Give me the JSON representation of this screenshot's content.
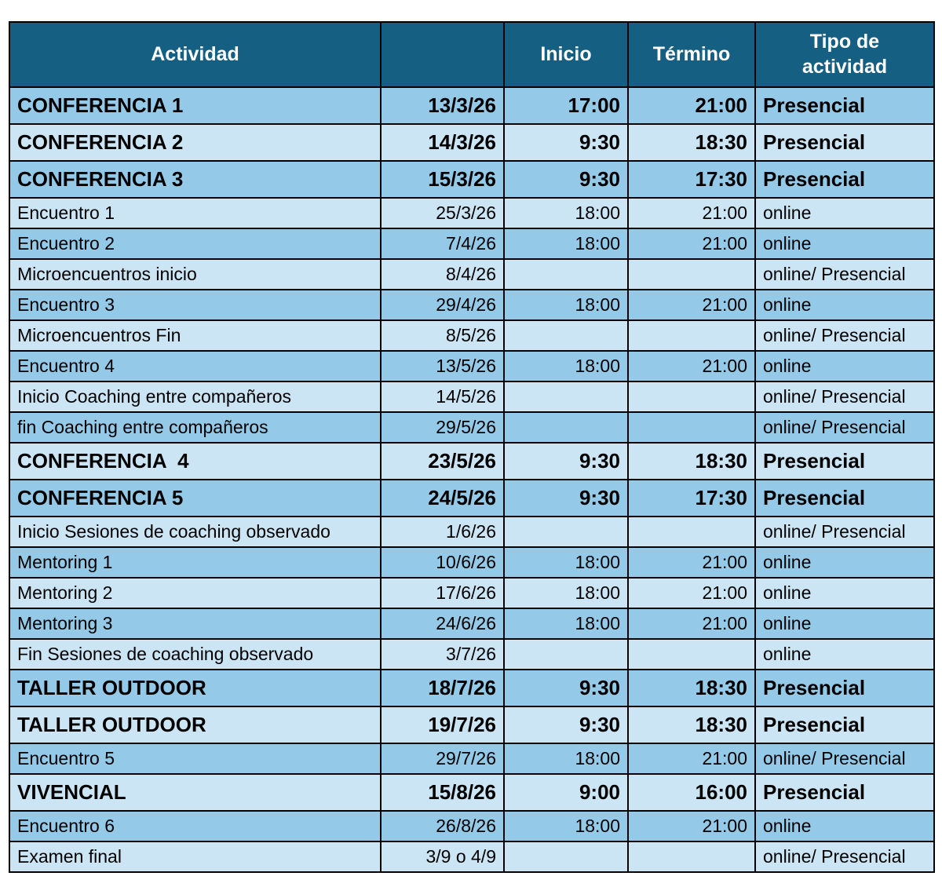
{
  "colors": {
    "header_bg": "#156082",
    "header_text": "#ffffff",
    "row_a": "#94cae8",
    "row_b": "#cbe5f4",
    "border": "#000000",
    "text": "#000000"
  },
  "table": {
    "headers": {
      "actividad": "Actividad",
      "fecha": "",
      "inicio": "Inicio",
      "termino": "Término",
      "tipo": "Tipo de actividad"
    },
    "rows": [
      {
        "actividad": "CONFERENCIA 1",
        "fecha": "13/3/26",
        "inicio": "17:00",
        "termino": "21:00",
        "tipo": "Presencial",
        "emphasis": true
      },
      {
        "actividad": "CONFERENCIA 2",
        "fecha": "14/3/26",
        "inicio": "9:30",
        "termino": "18:30",
        "tipo": "Presencial",
        "emphasis": true
      },
      {
        "actividad": "CONFERENCIA 3",
        "fecha": "15/3/26",
        "inicio": "9:30",
        "termino": "17:30",
        "tipo": "Presencial",
        "emphasis": true
      },
      {
        "actividad": "Encuentro 1",
        "fecha": "25/3/26",
        "inicio": "18:00",
        "termino": "21:00",
        "tipo": "online",
        "emphasis": false
      },
      {
        "actividad": "Encuentro 2",
        "fecha": "7/4/26",
        "inicio": "18:00",
        "termino": "21:00",
        "tipo": "online",
        "emphasis": false
      },
      {
        "actividad": "Microencuentros inicio",
        "fecha": "8/4/26",
        "inicio": "",
        "termino": "",
        "tipo": "online/ Presencial",
        "emphasis": false
      },
      {
        "actividad": "Encuentro 3",
        "fecha": "29/4/26",
        "inicio": "18:00",
        "termino": "21:00",
        "tipo": "online",
        "emphasis": false
      },
      {
        "actividad": "Microencuentros Fin",
        "fecha": "8/5/26",
        "inicio": "",
        "termino": "",
        "tipo": "online/ Presencial",
        "emphasis": false
      },
      {
        "actividad": "Encuentro 4",
        "fecha": "13/5/26",
        "inicio": "18:00",
        "termino": "21:00",
        "tipo": "online",
        "emphasis": false
      },
      {
        "actividad": "Inicio Coaching entre compañeros",
        "fecha": "14/5/26",
        "inicio": "",
        "termino": "",
        "tipo": "online/ Presencial",
        "emphasis": false
      },
      {
        "actividad": "fin Coaching entre compañeros",
        "fecha": "29/5/26",
        "inicio": "",
        "termino": "",
        "tipo": "online/ Presencial",
        "emphasis": false
      },
      {
        "actividad": "CONFERENCIA  4",
        "fecha": "23/5/26",
        "inicio": "9:30",
        "termino": "18:30",
        "tipo": "Presencial",
        "emphasis": true
      },
      {
        "actividad": "CONFERENCIA 5",
        "fecha": "24/5/26",
        "inicio": "9:30",
        "termino": "17:30",
        "tipo": "Presencial",
        "emphasis": true
      },
      {
        "actividad": "Inicio Sesiones de coaching observado",
        "fecha": "1/6/26",
        "inicio": "",
        "termino": "",
        "tipo": "online/ Presencial",
        "emphasis": false
      },
      {
        "actividad": "Mentoring 1",
        "fecha": "10/6/26",
        "inicio": "18:00",
        "termino": "21:00",
        "tipo": "online",
        "emphasis": false
      },
      {
        "actividad": "Mentoring 2",
        "fecha": "17/6/26",
        "inicio": "18:00",
        "termino": "21:00",
        "tipo": "online",
        "emphasis": false
      },
      {
        "actividad": "Mentoring 3",
        "fecha": "24/6/26",
        "inicio": "18:00",
        "termino": "21:00",
        "tipo": "online",
        "emphasis": false
      },
      {
        "actividad": "Fin Sesiones de coaching observado",
        "fecha": "3/7/26",
        "inicio": "",
        "termino": "",
        "tipo": "online",
        "emphasis": false
      },
      {
        "actividad": "TALLER OUTDOOR",
        "fecha": "18/7/26",
        "inicio": "9:30",
        "termino": "18:30",
        "tipo": "Presencial",
        "emphasis": true
      },
      {
        "actividad": "TALLER OUTDOOR",
        "fecha": "19/7/26",
        "inicio": "9:30",
        "termino": "18:30",
        "tipo": "Presencial",
        "emphasis": true
      },
      {
        "actividad": "Encuentro 5",
        "fecha": "29/7/26",
        "inicio": "18:00",
        "termino": "21:00",
        "tipo": "online/ Presencial",
        "emphasis": false
      },
      {
        "actividad": "VIVENCIAL",
        "fecha": "15/8/26",
        "inicio": "9:00",
        "termino": "16:00",
        "tipo": "Presencial",
        "emphasis": true
      },
      {
        "actividad": "Encuentro 6",
        "fecha": "26/8/26",
        "inicio": "18:00",
        "termino": "21:00",
        "tipo": "online",
        "emphasis": false
      },
      {
        "actividad": "Examen final",
        "fecha": "3/9 o 4/9",
        "inicio": "",
        "termino": "",
        "tipo": "online/ Presencial",
        "emphasis": false
      }
    ]
  }
}
